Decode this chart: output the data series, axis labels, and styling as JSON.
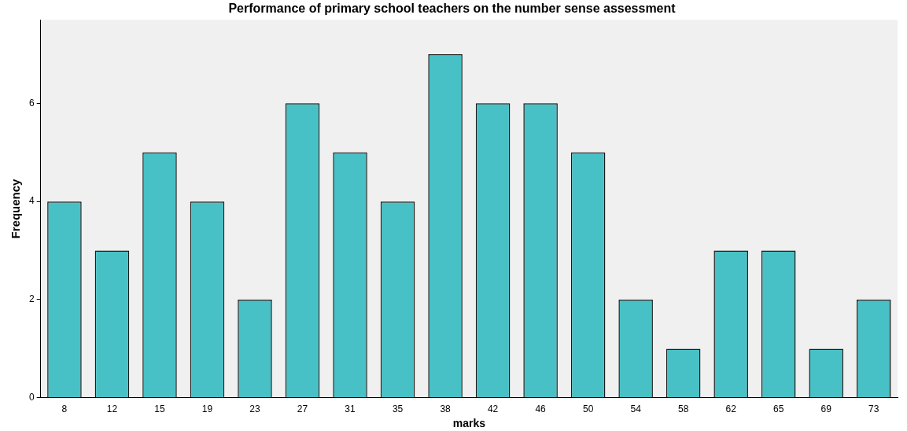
{
  "chart_data": {
    "type": "bar",
    "title": "Performance of primary school teachers on the number sense assessment",
    "xlabel": "marks",
    "ylabel": "Frequency",
    "categories": [
      "8",
      "12",
      "15",
      "19",
      "23",
      "27",
      "31",
      "35",
      "38",
      "42",
      "46",
      "50",
      "54",
      "58",
      "62",
      "65",
      "69",
      "73"
    ],
    "values": [
      4,
      3,
      5,
      4,
      2,
      6,
      5,
      4,
      7,
      6,
      6,
      5,
      2,
      1,
      3,
      3,
      1,
      2
    ],
    "color": "#48c1c6",
    "ylim": [
      0,
      7.7
    ],
    "yticks": [
      0,
      2,
      4,
      6
    ],
    "grid": false,
    "legend": false
  }
}
